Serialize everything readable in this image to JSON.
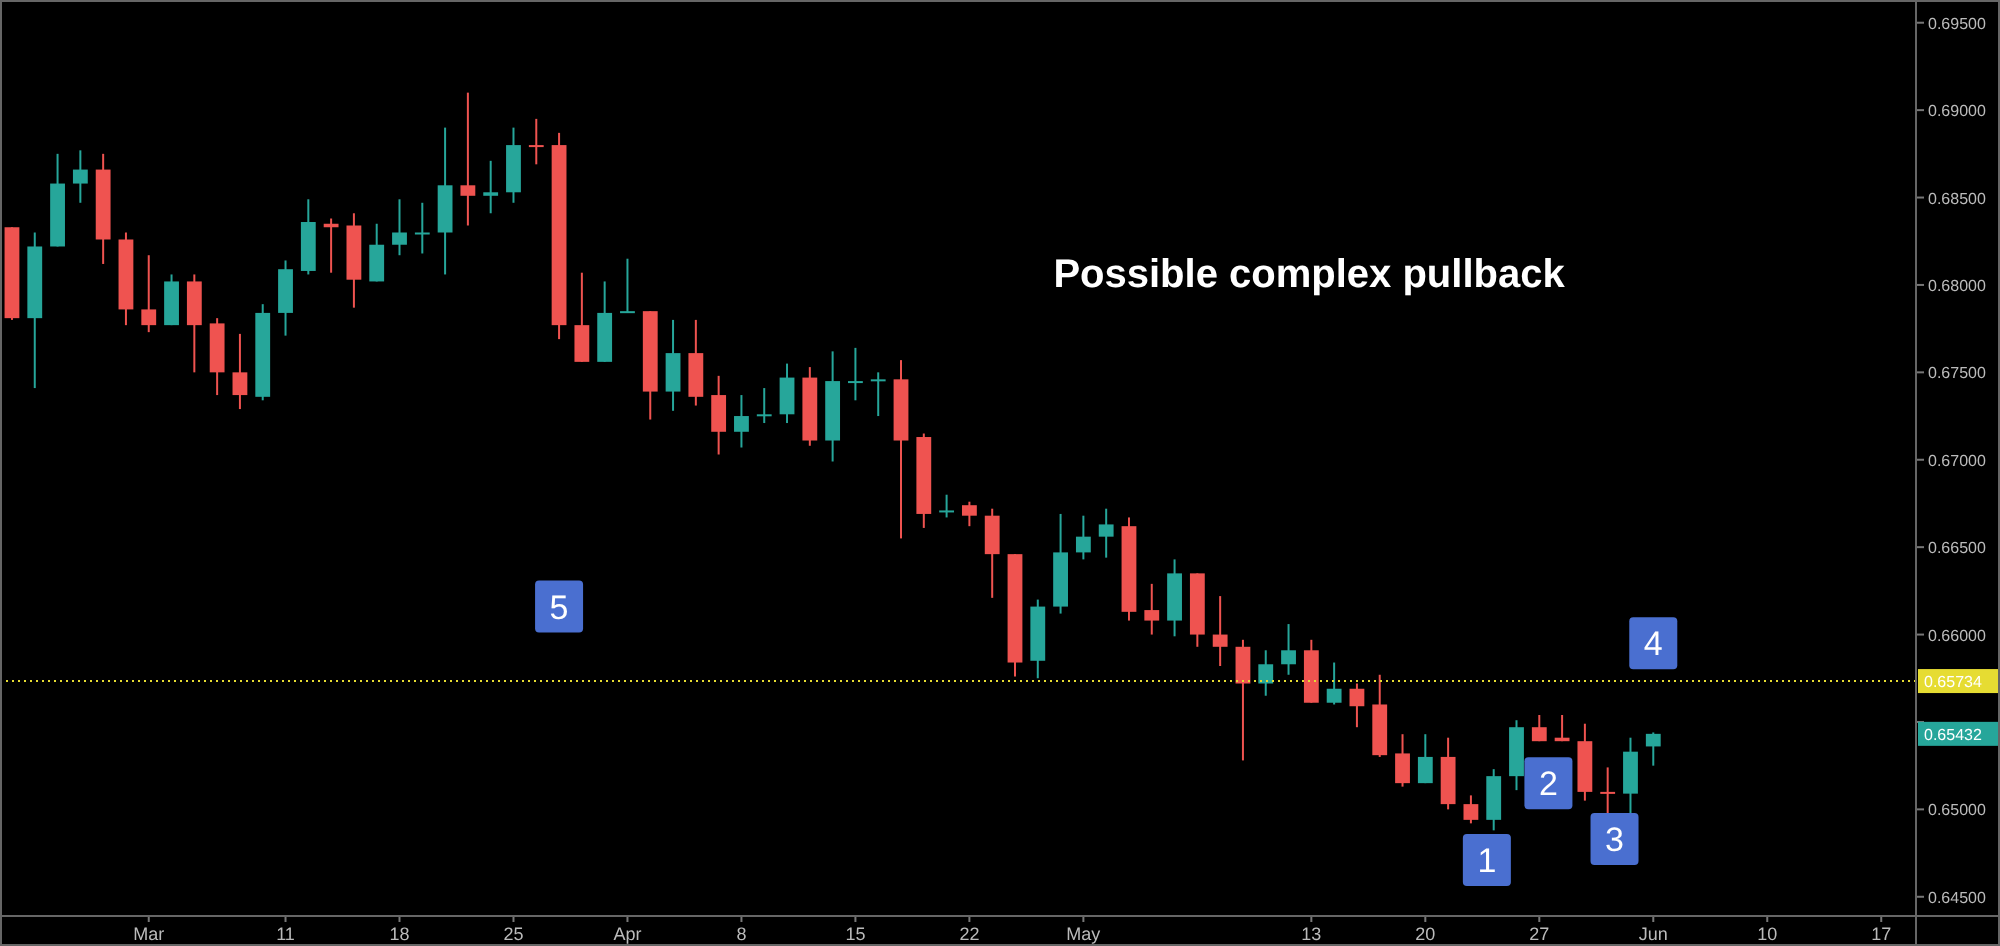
{
  "chart_data": {
    "type": "candlestick",
    "categories": [
      null,
      null,
      null,
      null,
      null,
      null,
      "Mar",
      null,
      null,
      null,
      null,
      null,
      "11",
      null,
      null,
      null,
      null,
      "18",
      null,
      null,
      null,
      null,
      "25",
      null,
      null,
      null,
      null,
      "Apr",
      null,
      null,
      null,
      null,
      "8",
      null,
      null,
      null,
      null,
      "15",
      null,
      null,
      null,
      null,
      "22",
      null,
      null,
      null,
      null,
      "May",
      null,
      null,
      null,
      null,
      null,
      null,
      null,
      null,
      null,
      "13",
      null,
      null,
      null,
      null,
      "20",
      null,
      null,
      null,
      null,
      "27",
      null,
      null,
      null,
      null,
      "Jun",
      null,
      null,
      null,
      null,
      "10",
      null,
      null,
      null,
      null,
      "17",
      null
    ],
    "ohlc": [
      [
        0.6833,
        0.6833,
        0.678,
        0.6781
      ],
      [
        0.6781,
        0.683,
        0.6741,
        0.6822
      ],
      [
        0.6822,
        0.6875,
        0.6822,
        0.6858
      ],
      [
        0.6858,
        0.6877,
        0.6847,
        0.6866
      ],
      [
        0.6866,
        0.6875,
        0.6812,
        0.6826
      ],
      [
        0.6826,
        0.683,
        0.6777,
        0.6786
      ],
      [
        0.6786,
        0.6817,
        0.6773,
        0.6777
      ],
      [
        0.6777,
        0.6806,
        0.6777,
        0.6802
      ],
      [
        0.6802,
        0.6806,
        0.675,
        0.6777
      ],
      [
        0.6778,
        0.6781,
        0.6737,
        0.675
      ],
      [
        0.675,
        0.6772,
        0.6729,
        0.6737
      ],
      [
        0.6736,
        0.6789,
        0.6734,
        0.6784
      ],
      [
        0.6784,
        0.6814,
        0.6771,
        0.6809
      ],
      [
        0.6808,
        0.6849,
        0.6806,
        0.6836
      ],
      [
        0.6835,
        0.6838,
        0.6807,
        0.6833
      ],
      [
        0.6834,
        0.6841,
        0.6787,
        0.6803
      ],
      [
        0.6802,
        0.6835,
        0.6802,
        0.6823
      ],
      [
        0.6823,
        0.6849,
        0.6817,
        0.683
      ],
      [
        0.6829,
        0.6847,
        0.6818,
        0.683
      ],
      [
        0.683,
        0.689,
        0.6806,
        0.6857
      ],
      [
        0.6857,
        0.691,
        0.6834,
        0.6851
      ],
      [
        0.6851,
        0.6871,
        0.6841,
        0.6853
      ],
      [
        0.6853,
        0.689,
        0.6847,
        0.688
      ],
      [
        0.688,
        0.6895,
        0.6869,
        0.6879
      ],
      [
        0.688,
        0.6887,
        0.6769,
        0.6777
      ],
      [
        0.6777,
        0.6807,
        0.6756,
        0.6756
      ],
      [
        0.6756,
        0.6802,
        0.6756,
        0.6784
      ],
      [
        0.6784,
        0.6815,
        0.6784,
        0.6785
      ],
      [
        0.6785,
        0.6785,
        0.6723,
        0.6739
      ],
      [
        0.6739,
        0.678,
        0.6728,
        0.6761
      ],
      [
        0.6761,
        0.678,
        0.6731,
        0.6736
      ],
      [
        0.6737,
        0.6748,
        0.6703,
        0.6716
      ],
      [
        0.6716,
        0.6737,
        0.6707,
        0.6725
      ],
      [
        0.6725,
        0.6741,
        0.6721,
        0.6726
      ],
      [
        0.6726,
        0.6755,
        0.6721,
        0.6747
      ],
      [
        0.6747,
        0.6753,
        0.6708,
        0.6711
      ],
      [
        0.6711,
        0.6762,
        0.6699,
        0.6745
      ],
      [
        0.6744,
        0.6764,
        0.6734,
        0.6745
      ],
      [
        0.6745,
        0.675,
        0.6725,
        0.6746
      ],
      [
        0.6746,
        0.6757,
        0.6655,
        0.6711
      ],
      [
        0.6713,
        0.6715,
        0.6661,
        0.6669
      ],
      [
        0.667,
        0.668,
        0.6667,
        0.6671
      ],
      [
        0.6674,
        0.6676,
        0.6662,
        0.6668
      ],
      [
        0.6668,
        0.6672,
        0.6621,
        0.6646
      ],
      [
        0.6646,
        0.6646,
        0.6576,
        0.6584
      ],
      [
        0.6585,
        0.662,
        0.6575,
        0.6616
      ],
      [
        0.6616,
        0.6669,
        0.6612,
        0.6647
      ],
      [
        0.6647,
        0.6668,
        0.6643,
        0.6656
      ],
      [
        0.6656,
        0.6672,
        0.6644,
        0.6663
      ],
      [
        0.6662,
        0.6667,
        0.6608,
        0.6613
      ],
      [
        0.6614,
        0.6629,
        0.66,
        0.6608
      ],
      [
        0.6608,
        0.6643,
        0.6599,
        0.6635
      ],
      [
        0.6635,
        0.6635,
        0.6593,
        0.66
      ],
      [
        0.66,
        0.6622,
        0.6582,
        0.6593
      ],
      [
        0.6593,
        0.6597,
        0.6528,
        0.6572
      ],
      [
        0.6572,
        0.6591,
        0.6565,
        0.6583
      ],
      [
        0.6583,
        0.6606,
        0.6577,
        0.6591
      ],
      [
        0.6591,
        0.6597,
        0.6561,
        0.6561
      ],
      [
        0.6561,
        0.6584,
        0.656,
        0.6569
      ],
      [
        0.6569,
        0.6572,
        0.6547,
        0.6559
      ],
      [
        0.656,
        0.6577,
        0.653,
        0.6531
      ],
      [
        0.6532,
        0.6543,
        0.6513,
        0.6515
      ],
      [
        0.6515,
        0.6543,
        0.6515,
        0.653
      ],
      [
        0.653,
        0.6541,
        0.65,
        0.6503
      ],
      [
        0.6503,
        0.6508,
        0.6492,
        0.6494
      ],
      [
        0.6494,
        0.6523,
        0.6488,
        0.6519
      ],
      [
        0.6519,
        0.6551,
        0.6511,
        0.6547
      ],
      [
        0.6547,
        0.6554,
        0.6539,
        0.6539
      ],
      [
        0.6541,
        0.6554,
        0.6539,
        0.6539
      ],
      [
        0.6539,
        0.6549,
        0.6505,
        0.651
      ],
      [
        0.651,
        0.6524,
        0.6497,
        0.6509
      ],
      [
        0.6509,
        0.6541,
        0.6497,
        0.6533
      ],
      [
        0.6536,
        0.6544,
        0.6525,
        0.65432
      ],
      null,
      null,
      null,
      null,
      null,
      null,
      null,
      null,
      null,
      null,
      null
    ],
    "ylim": [
      0.6439,
      0.6963
    ],
    "yticks": [
      {
        "value": 0.645,
        "label": "0.64500"
      },
      {
        "value": 0.65,
        "label": "0.65000"
      },
      {
        "value": 0.655,
        "label": null
      },
      {
        "value": 0.66,
        "label": "0.66000"
      },
      {
        "value": 0.665,
        "label": "0.66500"
      },
      {
        "value": 0.67,
        "label": "0.67000"
      },
      {
        "value": 0.675,
        "label": "0.67500"
      },
      {
        "value": 0.68,
        "label": "0.68000"
      },
      {
        "value": 0.685,
        "label": "0.68500"
      },
      {
        "value": 0.69,
        "label": "0.69000"
      },
      {
        "value": 0.695,
        "label": "0.69500"
      }
    ],
    "ref_lines": [
      {
        "axis": "y",
        "value": 0.65734,
        "label": "0.65734",
        "color": "#e6dc32",
        "line_style": "dotted"
      }
    ],
    "annotations": [
      "Possible complex pullback",
      "5",
      "1",
      "2",
      "3",
      "4",
      "0.65432"
    ]
  }
}
